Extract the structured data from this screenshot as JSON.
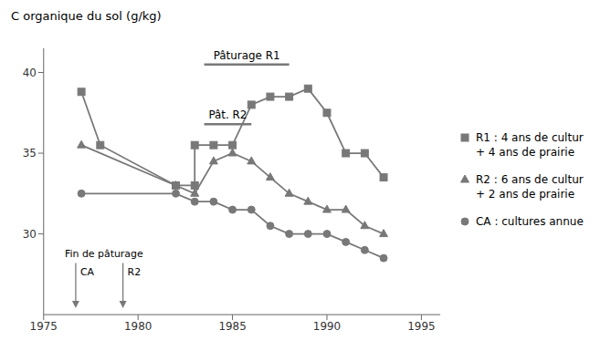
{
  "chart_data": {
    "type": "line",
    "ylabel": "C organique du sol (g/kg)",
    "xlim": [
      1975,
      1996
    ],
    "ylim": [
      25,
      41.5
    ],
    "xticks": [
      1975,
      1980,
      1985,
      1990,
      1995
    ],
    "yticks": [
      30,
      35,
      40
    ],
    "color": "#787878",
    "series": [
      {
        "marker": "square",
        "legend_lines": [
          "R1 : 4 ans de cultur",
          "+ 4 ans de prairie"
        ],
        "x": [
          1977,
          1978,
          1982,
          1983,
          1983,
          1984,
          1985,
          1986,
          1987,
          1988,
          1989,
          1990,
          1991,
          1992,
          1993
        ],
        "values": [
          38.8,
          35.5,
          33.0,
          33.0,
          35.5,
          35.5,
          35.5,
          38.0,
          38.5,
          38.5,
          39.0,
          37.5,
          35.0,
          35.0,
          33.5
        ]
      },
      {
        "marker": "triangle",
        "legend_lines": [
          "R2 : 6 ans de cultur",
          "+ 2 ans de prairie"
        ],
        "x": [
          1977,
          1982,
          1983,
          1984,
          1985,
          1986,
          1987,
          1988,
          1989,
          1990,
          1991,
          1992,
          1993
        ],
        "values": [
          35.5,
          33.0,
          32.5,
          34.5,
          35.0,
          34.5,
          33.5,
          32.5,
          32.0,
          31.5,
          31.5,
          30.5,
          30.0
        ]
      },
      {
        "marker": "circle",
        "legend_lines": [
          "CA : cultures annue"
        ],
        "x": [
          1977,
          1982,
          1983,
          1984,
          1985,
          1986,
          1987,
          1988,
          1989,
          1990,
          1991,
          1992,
          1993
        ],
        "values": [
          32.5,
          32.5,
          32.0,
          32.0,
          31.5,
          31.5,
          30.5,
          30.0,
          30.0,
          30.0,
          29.5,
          29.0,
          28.5
        ]
      }
    ],
    "periods": [
      {
        "label": "Pâturage R1",
        "x": [
          1983.5,
          1988.0
        ],
        "y": 40.5
      },
      {
        "label": "Pât. R2",
        "x": [
          1983.5,
          1986.0
        ],
        "y": 36.8
      }
    ],
    "arrows": {
      "title": "Fin de pâturage",
      "y": [
        28.2,
        25.4
      ],
      "items": [
        {
          "label": "CA",
          "x": 1976.7
        },
        {
          "label": "R2",
          "x": 1979.2
        }
      ]
    }
  }
}
